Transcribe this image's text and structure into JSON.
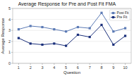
{
  "chart_data": {
    "type": "line",
    "title": "Average Response for Pre and Post Fit FMA",
    "xlabel": "Question",
    "ylabel": "Average Response",
    "x": [
      1,
      2,
      3,
      4,
      5,
      6,
      7,
      8,
      9,
      10
    ],
    "series": [
      {
        "name": "Post Fit",
        "color": "#5b7ab5",
        "marker": "square",
        "values": [
          3.1,
          3.4,
          3.3,
          3.1,
          2.9,
          3.3,
          3.2,
          4.6,
          2.9,
          3.2
        ]
      },
      {
        "name": "Pre Fit",
        "color": "#1a2f7a",
        "marker": "square",
        "values": [
          2.3,
          1.8,
          1.7,
          1.8,
          1.6,
          2.6,
          2.4,
          3.5,
          1.7,
          2.5
        ]
      }
    ],
    "xlim": [
      0.5,
      10.5
    ],
    "xticks": [
      1,
      2,
      3,
      4,
      5,
      6,
      7,
      8,
      9,
      10
    ],
    "ylim": [
      0,
      5
    ],
    "yticks": [
      0,
      1,
      2,
      3,
      4,
      5
    ],
    "grid": true,
    "legend": "upper right"
  }
}
